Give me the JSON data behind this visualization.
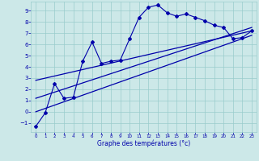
{
  "xlabel": "Graphe des températures (°c)",
  "background_color": "#cce8e8",
  "grid_color": "#99cccc",
  "line_color": "#0000aa",
  "xlim": [
    -0.5,
    23.5
  ],
  "ylim": [
    -1.8,
    9.8
  ],
  "yticks": [
    -1,
    0,
    1,
    2,
    3,
    4,
    5,
    6,
    7,
    8,
    9
  ],
  "xticks": [
    0,
    1,
    2,
    3,
    4,
    5,
    6,
    7,
    8,
    9,
    10,
    11,
    12,
    13,
    14,
    15,
    16,
    17,
    18,
    19,
    20,
    21,
    22,
    23
  ],
  "temp_x": [
    0,
    1,
    2,
    3,
    4,
    5,
    6,
    7,
    8,
    9,
    10,
    11,
    12,
    13,
    14,
    15,
    16,
    17,
    18,
    19,
    20,
    21,
    22,
    23
  ],
  "temp_y": [
    -1.3,
    -0.1,
    2.5,
    1.2,
    1.3,
    4.5,
    6.2,
    4.3,
    4.5,
    4.6,
    6.5,
    8.4,
    9.3,
    9.5,
    8.8,
    8.5,
    8.7,
    8.4,
    8.1,
    7.7,
    7.5,
    6.5,
    6.6,
    7.2
  ],
  "line1_x": [
    0,
    23
  ],
  "line1_y": [
    2.8,
    7.2
  ],
  "line2_x": [
    0,
    23
  ],
  "line2_y": [
    1.2,
    7.5
  ],
  "line3_x": [
    0,
    23
  ],
  "line3_y": [
    0.0,
    6.8
  ]
}
